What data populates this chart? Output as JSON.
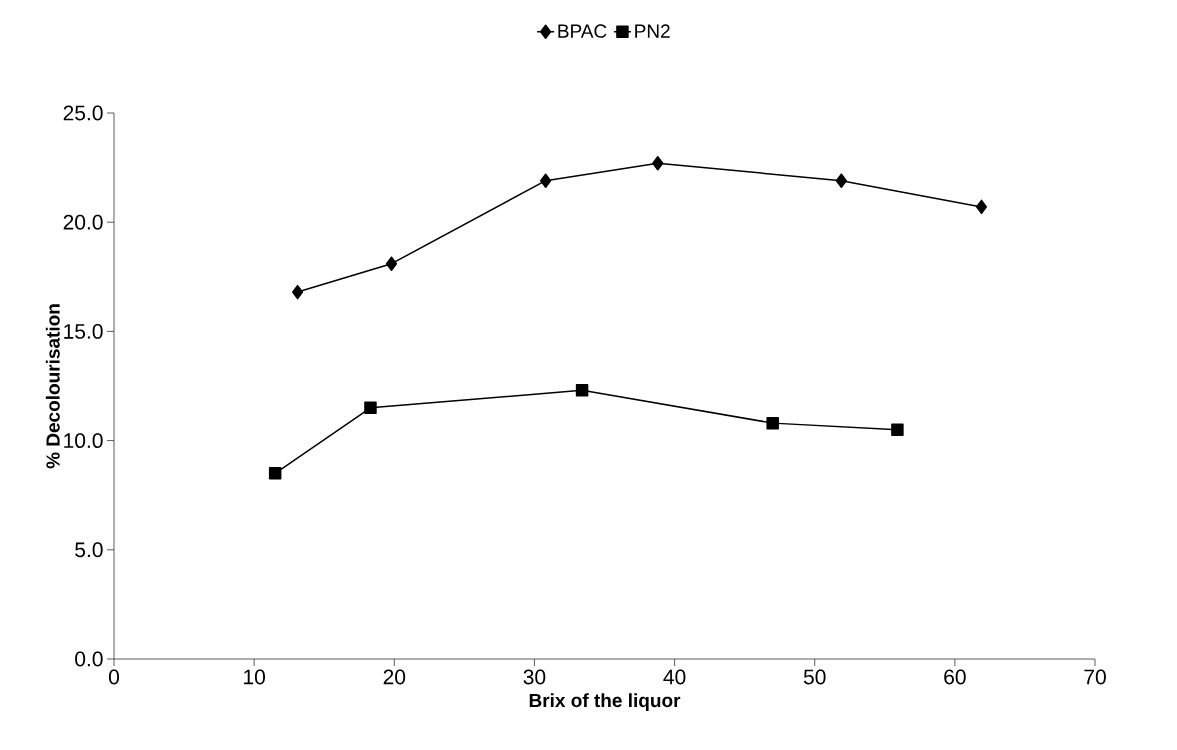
{
  "chart_data": {
    "type": "line",
    "xlabel": "Brix of the liquor",
    "ylabel": "% Decolourisation",
    "xlim": [
      0,
      70
    ],
    "xticks": [
      0,
      10,
      20,
      30,
      40,
      50,
      60,
      70
    ],
    "ylim": [
      0,
      25
    ],
    "yticks": [
      {
        "value": 0,
        "label": "0.0"
      },
      {
        "value": 5,
        "label": "5.0"
      },
      {
        "value": 10,
        "label": "10.0"
      },
      {
        "value": 15,
        "label": "15.0"
      },
      {
        "value": 20,
        "label": "20.0"
      },
      {
        "value": 25,
        "label": "25.0"
      }
    ],
    "grid": false,
    "legend": "top",
    "line_style": "solid",
    "series": [
      {
        "name": "BPAC",
        "color": "#000000",
        "marker": "diamond",
        "x": [
          13.1,
          19.8,
          30.8,
          38.8,
          51.9,
          61.9
        ],
        "values": [
          16.8,
          18.1,
          21.9,
          22.7,
          21.9,
          20.7
        ]
      },
      {
        "name": "PN2",
        "color": "#000000",
        "marker": "square",
        "x": [
          11.5,
          18.3,
          33.4,
          47.0,
          55.9
        ],
        "values": [
          8.5,
          11.5,
          12.3,
          10.8,
          10.5
        ]
      }
    ]
  }
}
